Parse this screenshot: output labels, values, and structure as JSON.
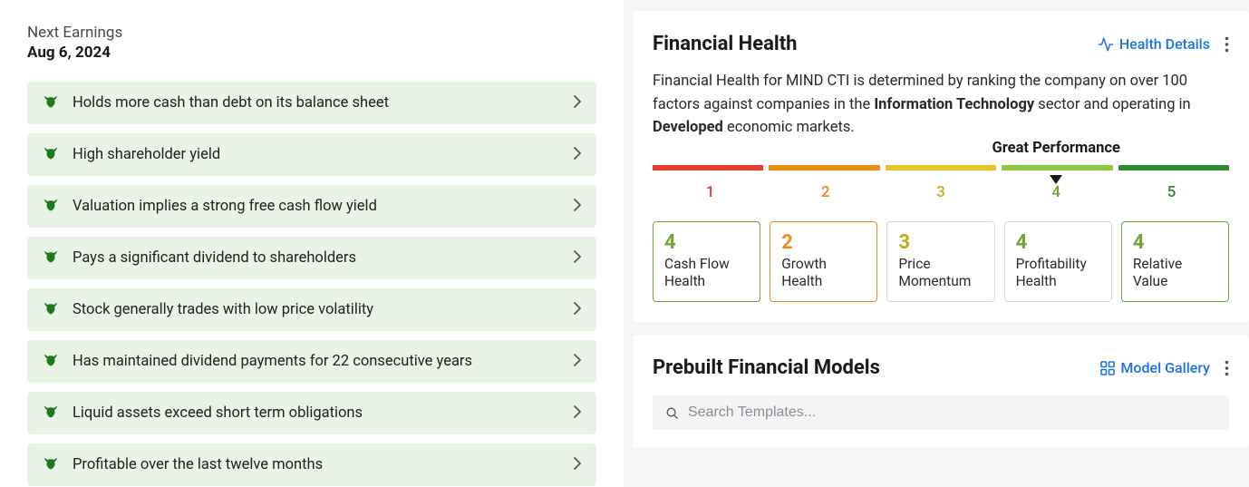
{
  "left": {
    "next_earnings_label": "Next Earnings",
    "next_earnings_date": "Aug 6, 2024",
    "insight_bg": "#e9f4e7",
    "bull_color": "#1d7a1d",
    "insights": [
      {
        "text": "Holds more cash than debt on its balance sheet"
      },
      {
        "text": "High shareholder yield"
      },
      {
        "text": "Valuation implies a strong free cash flow yield"
      },
      {
        "text": "Pays a significant dividend to shareholders"
      },
      {
        "text": "Stock generally trades with low price volatility"
      },
      {
        "text": "Has maintained dividend payments for 22 consecutive years"
      },
      {
        "text": "Liquid assets exceed short term obligations"
      },
      {
        "text": "Profitable over the last twelve months"
      }
    ]
  },
  "health": {
    "title": "Financial Health",
    "details_link": "Health Details",
    "desc_prefix": "Financial Health for MIND CTI is determined by ranking the company on over 100 factors against companies in the ",
    "desc_bold1": "Information Technology",
    "desc_mid": " sector and operating in ",
    "desc_bold2": "Developed",
    "desc_suffix": " economic markets.",
    "gauge": {
      "performance_label": "Great Performance",
      "pointer_position_pct": 70,
      "segments": [
        {
          "color": "#e63b2e",
          "num": "1",
          "num_color": "#e63b2e"
        },
        {
          "color": "#f08c1a",
          "num": "2",
          "num_color": "#f08c1a"
        },
        {
          "color": "#e8c32b",
          "num": "3",
          "num_color": "#c9a818"
        },
        {
          "color": "#8fc940",
          "num": "4",
          "num_color": "#6fa532"
        },
        {
          "color": "#2e8b2e",
          "num": "5",
          "num_color": "#2e8b2e"
        }
      ]
    },
    "scores": [
      {
        "val": "4",
        "label": "Cash Flow Health",
        "color": "#6fa532",
        "border": "#6fa532"
      },
      {
        "val": "2",
        "label": "Growth Health",
        "color": "#f08c1a",
        "border": "#f08c1a"
      },
      {
        "val": "3",
        "label": "Price Momentum",
        "color": "#c9a818",
        "border": "#d9d9d9"
      },
      {
        "val": "4",
        "label": "Profitability Health",
        "color": "#6fa532",
        "border": "#d9d9d9"
      },
      {
        "val": "4",
        "label": "Relative Value",
        "color": "#6fa532",
        "border": "#6fa532"
      }
    ]
  },
  "models": {
    "title": "Prebuilt Financial Models",
    "gallery_link": "Model Gallery",
    "search_placeholder": "Search Templates..."
  },
  "link_color": "#1a73e8"
}
